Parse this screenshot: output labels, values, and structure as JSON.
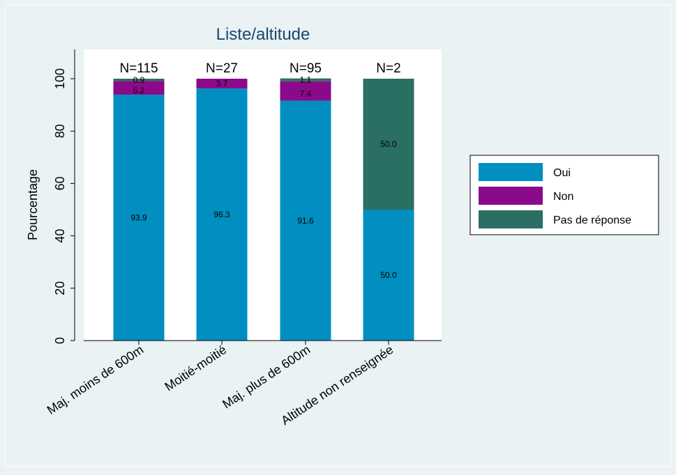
{
  "chart_data": {
    "type": "bar",
    "stacked": true,
    "title": "Liste/altitude",
    "xlabel": "",
    "ylabel": "Pourcentage",
    "ylim": [
      0,
      100
    ],
    "yticks": [
      "0",
      "20",
      "40",
      "60",
      "80",
      "100"
    ],
    "grid": false,
    "legend_position": "right",
    "categories": [
      "Maj. moins de 600m",
      "Moitié-moitié",
      "Maj. plus de 600m",
      "Altitude non renseignée"
    ],
    "counts": [
      "N=115",
      "N=27",
      "N=95",
      "N=2"
    ],
    "series": [
      {
        "name": "Oui",
        "color": "#008fc0",
        "values": [
          93.9,
          96.3,
          91.6,
          50.0
        ],
        "labels": [
          "93.9",
          "96.3",
          "91.6",
          "50.0"
        ]
      },
      {
        "name": "Non",
        "color": "#8a0a8a",
        "values": [
          5.2,
          3.7,
          7.4,
          0
        ],
        "labels": [
          "5.2",
          "3.7",
          "7.4",
          ""
        ]
      },
      {
        "name": "Pas de réponse",
        "color": "#2b6e63",
        "values": [
          0.9,
          0,
          1.1,
          50.0
        ],
        "labels": [
          "0.9",
          "",
          "1.1",
          "50.0"
        ]
      }
    ]
  }
}
